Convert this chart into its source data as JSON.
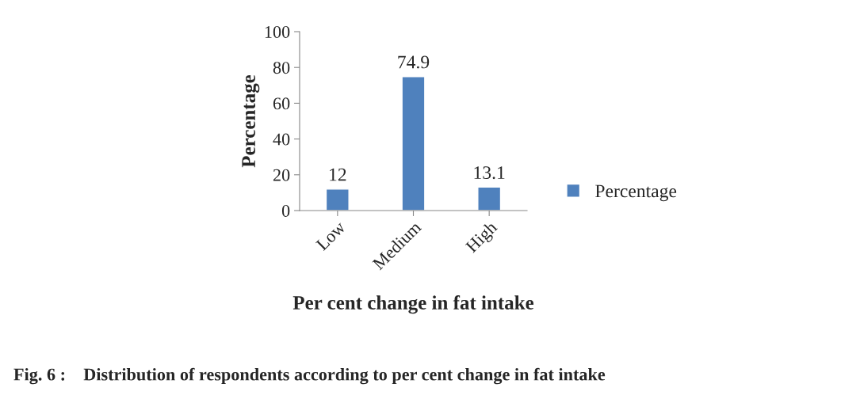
{
  "chart_data": {
    "type": "bar",
    "xlabel": "Per cent change in fat intake",
    "ylabel": "Percentage",
    "categories": [
      "Low",
      "Medium",
      "High"
    ],
    "series": [
      {
        "name": "Percentage",
        "color": "#4f81bd",
        "values": [
          12,
          74.9,
          13.1
        ]
      }
    ],
    "ylim": [
      0,
      100
    ],
    "yticks": [
      0,
      20,
      40,
      60,
      80,
      100
    ],
    "data_labels": true,
    "grid": false,
    "legend": "right",
    "annotations": [
      "Fig. 6 :    Distribution of respondents according to per cent change in fat intake"
    ]
  }
}
